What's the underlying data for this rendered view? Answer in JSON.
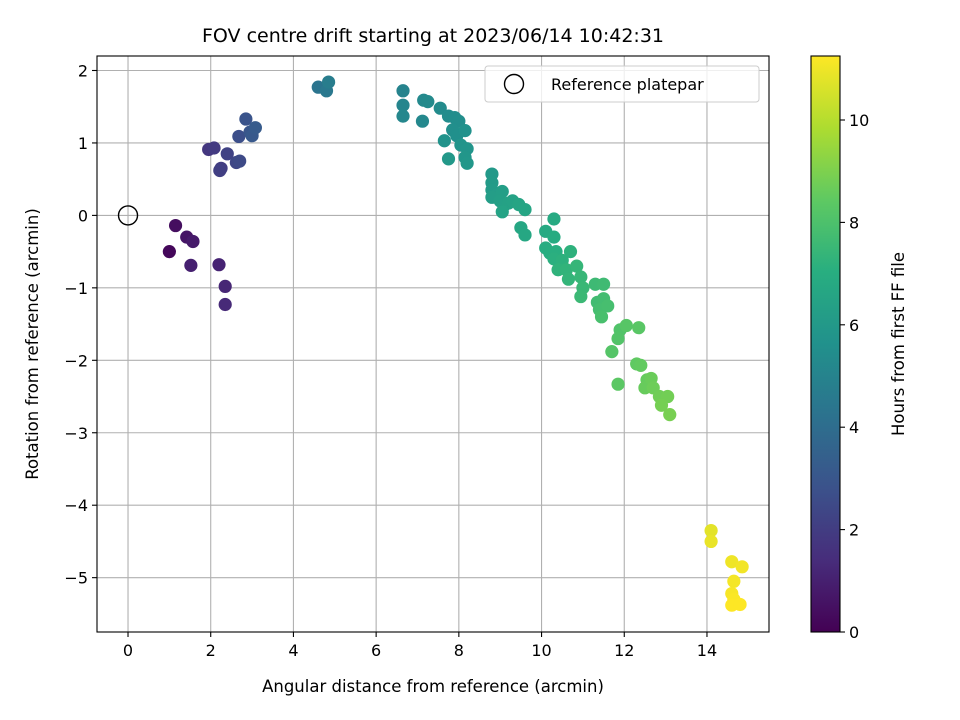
{
  "chart_data": {
    "type": "scatter",
    "title": "FOV centre drift starting at 2023/06/14 10:42:31",
    "xlabel": "Angular distance from reference (arcmin)",
    "ylabel": "Rotation from reference (arcmin)",
    "xlim": [
      -0.75,
      15.5
    ],
    "ylim": [
      -5.75,
      2.2
    ],
    "xticks": [
      0,
      2,
      4,
      6,
      8,
      10,
      12,
      14
    ],
    "yticks": [
      2,
      1,
      0,
      -1,
      -2,
      -3,
      -4,
      -5
    ],
    "xtick_labels": [
      "0",
      "2",
      "4",
      "6",
      "8",
      "10",
      "12",
      "14"
    ],
    "ytick_labels": [
      "2",
      "1",
      "0",
      "−1",
      "−2",
      "−3",
      "−4",
      "−5"
    ],
    "grid": true,
    "legend": {
      "location": "top-right",
      "entries": [
        {
          "label": "Reference platepar",
          "marker": "open-circle"
        }
      ]
    },
    "reference_point": {
      "x": 0,
      "y": 0
    },
    "colorbar": {
      "label": "Hours from first FF file",
      "colormap": "viridis",
      "range": [
        0,
        11.25
      ],
      "ticks": [
        0,
        2,
        4,
        6,
        8,
        10
      ],
      "tick_labels": [
        "0",
        "2",
        "4",
        "6",
        "8",
        "10"
      ]
    },
    "points": [
      {
        "x": 1.0,
        "y": -0.5,
        "t": 0.2
      },
      {
        "x": 1.15,
        "y": -0.14,
        "t": 0.4
      },
      {
        "x": 1.42,
        "y": -0.3,
        "t": 0.6
      },
      {
        "x": 1.57,
        "y": -0.36,
        "t": 0.8
      },
      {
        "x": 1.52,
        "y": -0.69,
        "t": 1.0
      },
      {
        "x": 2.2,
        "y": -0.68,
        "t": 1.1
      },
      {
        "x": 2.35,
        "y": -0.98,
        "t": 1.2
      },
      {
        "x": 2.35,
        "y": -1.23,
        "t": 1.3
      },
      {
        "x": 1.95,
        "y": 0.91,
        "t": 1.8
      },
      {
        "x": 2.08,
        "y": 0.93,
        "t": 1.9
      },
      {
        "x": 2.25,
        "y": 0.65,
        "t": 2.0
      },
      {
        "x": 2.22,
        "y": 0.62,
        "t": 2.1
      },
      {
        "x": 2.4,
        "y": 0.85,
        "t": 2.2
      },
      {
        "x": 2.62,
        "y": 0.73,
        "t": 2.4
      },
      {
        "x": 2.7,
        "y": 0.75,
        "t": 2.5
      },
      {
        "x": 2.68,
        "y": 1.09,
        "t": 2.7
      },
      {
        "x": 2.85,
        "y": 1.33,
        "t": 2.9
      },
      {
        "x": 2.95,
        "y": 1.15,
        "t": 3.0
      },
      {
        "x": 3.0,
        "y": 1.1,
        "t": 3.1
      },
      {
        "x": 3.08,
        "y": 1.21,
        "t": 3.2
      },
      {
        "x": 4.6,
        "y": 1.77,
        "t": 4.3
      },
      {
        "x": 4.8,
        "y": 1.72,
        "t": 4.5
      },
      {
        "x": 4.85,
        "y": 1.84,
        "t": 4.7
      },
      {
        "x": 6.65,
        "y": 1.72,
        "t": 5.0
      },
      {
        "x": 6.65,
        "y": 1.52,
        "t": 5.1
      },
      {
        "x": 6.65,
        "y": 1.37,
        "t": 5.15
      },
      {
        "x": 7.12,
        "y": 1.3,
        "t": 5.2
      },
      {
        "x": 7.15,
        "y": 1.59,
        "t": 5.25
      },
      {
        "x": 7.25,
        "y": 1.57,
        "t": 5.3
      },
      {
        "x": 7.55,
        "y": 1.48,
        "t": 5.35
      },
      {
        "x": 7.75,
        "y": 1.37,
        "t": 5.4
      },
      {
        "x": 7.9,
        "y": 1.35,
        "t": 5.45
      },
      {
        "x": 8.0,
        "y": 1.3,
        "t": 5.5
      },
      {
        "x": 7.85,
        "y": 1.18,
        "t": 5.55
      },
      {
        "x": 7.95,
        "y": 1.1,
        "t": 5.6
      },
      {
        "x": 8.15,
        "y": 1.17,
        "t": 5.65
      },
      {
        "x": 7.65,
        "y": 1.03,
        "t": 5.7
      },
      {
        "x": 8.05,
        "y": 0.97,
        "t": 5.75
      },
      {
        "x": 8.2,
        "y": 0.92,
        "t": 5.8
      },
      {
        "x": 8.15,
        "y": 0.8,
        "t": 5.85
      },
      {
        "x": 8.2,
        "y": 0.72,
        "t": 5.9
      },
      {
        "x": 7.75,
        "y": 0.78,
        "t": 5.95
      },
      {
        "x": 8.8,
        "y": 0.57,
        "t": 6.0
      },
      {
        "x": 8.8,
        "y": 0.45,
        "t": 6.05
      },
      {
        "x": 8.8,
        "y": 0.35,
        "t": 6.1
      },
      {
        "x": 8.9,
        "y": 0.28,
        "t": 6.15
      },
      {
        "x": 8.8,
        "y": 0.25,
        "t": 6.2
      },
      {
        "x": 9.05,
        "y": 0.33,
        "t": 6.25
      },
      {
        "x": 9.0,
        "y": 0.2,
        "t": 6.3
      },
      {
        "x": 9.1,
        "y": 0.14,
        "t": 6.35
      },
      {
        "x": 9.2,
        "y": 0.17,
        "t": 6.4
      },
      {
        "x": 9.3,
        "y": 0.2,
        "t": 6.45
      },
      {
        "x": 9.05,
        "y": 0.05,
        "t": 6.5
      },
      {
        "x": 9.45,
        "y": 0.15,
        "t": 6.55
      },
      {
        "x": 9.6,
        "y": 0.08,
        "t": 6.6
      },
      {
        "x": 9.5,
        "y": -0.17,
        "t": 6.65
      },
      {
        "x": 9.6,
        "y": -0.27,
        "t": 6.7
      },
      {
        "x": 10.1,
        "y": -0.22,
        "t": 6.8
      },
      {
        "x": 10.3,
        "y": -0.05,
        "t": 6.85
      },
      {
        "x": 10.3,
        "y": -0.3,
        "t": 6.9
      },
      {
        "x": 10.1,
        "y": -0.45,
        "t": 6.95
      },
      {
        "x": 10.2,
        "y": -0.52,
        "t": 7.0
      },
      {
        "x": 10.35,
        "y": -0.5,
        "t": 7.05
      },
      {
        "x": 10.3,
        "y": -0.6,
        "t": 7.1
      },
      {
        "x": 10.5,
        "y": -0.62,
        "t": 7.15
      },
      {
        "x": 10.7,
        "y": -0.5,
        "t": 7.2
      },
      {
        "x": 10.4,
        "y": -0.75,
        "t": 7.25
      },
      {
        "x": 10.6,
        "y": -0.75,
        "t": 7.3
      },
      {
        "x": 10.65,
        "y": -0.88,
        "t": 7.35
      },
      {
        "x": 10.85,
        "y": -0.7,
        "t": 7.4
      },
      {
        "x": 10.95,
        "y": -0.85,
        "t": 7.45
      },
      {
        "x": 11.0,
        "y": -1.0,
        "t": 7.5
      },
      {
        "x": 10.95,
        "y": -1.12,
        "t": 7.55
      },
      {
        "x": 11.3,
        "y": -0.95,
        "t": 7.6
      },
      {
        "x": 11.5,
        "y": -0.95,
        "t": 7.65
      },
      {
        "x": 11.35,
        "y": -1.2,
        "t": 7.7
      },
      {
        "x": 11.5,
        "y": -1.15,
        "t": 7.75
      },
      {
        "x": 11.4,
        "y": -1.3,
        "t": 7.8
      },
      {
        "x": 11.6,
        "y": -1.25,
        "t": 7.85
      },
      {
        "x": 11.45,
        "y": -1.4,
        "t": 7.9
      },
      {
        "x": 11.9,
        "y": -1.58,
        "t": 8.1
      },
      {
        "x": 11.85,
        "y": -1.7,
        "t": 8.15
      },
      {
        "x": 11.7,
        "y": -1.88,
        "t": 8.2
      },
      {
        "x": 12.05,
        "y": -1.52,
        "t": 8.25
      },
      {
        "x": 12.35,
        "y": -1.55,
        "t": 8.3
      },
      {
        "x": 11.85,
        "y": -2.33,
        "t": 8.35
      },
      {
        "x": 12.3,
        "y": -2.05,
        "t": 8.45
      },
      {
        "x": 12.4,
        "y": -2.07,
        "t": 8.5
      },
      {
        "x": 12.55,
        "y": -2.27,
        "t": 8.55
      },
      {
        "x": 12.5,
        "y": -2.38,
        "t": 8.6
      },
      {
        "x": 12.65,
        "y": -2.25,
        "t": 8.65
      },
      {
        "x": 12.7,
        "y": -2.38,
        "t": 8.7
      },
      {
        "x": 12.85,
        "y": -2.5,
        "t": 8.75
      },
      {
        "x": 13.05,
        "y": -2.5,
        "t": 8.8
      },
      {
        "x": 12.9,
        "y": -2.62,
        "t": 8.85
      },
      {
        "x": 13.1,
        "y": -2.75,
        "t": 8.9
      },
      {
        "x": 14.1,
        "y": -4.35,
        "t": 10.8
      },
      {
        "x": 14.1,
        "y": -4.5,
        "t": 10.9
      },
      {
        "x": 14.6,
        "y": -4.78,
        "t": 11.0
      },
      {
        "x": 14.85,
        "y": -4.85,
        "t": 11.05
      },
      {
        "x": 14.65,
        "y": -5.05,
        "t": 11.1
      },
      {
        "x": 14.6,
        "y": -5.22,
        "t": 11.15
      },
      {
        "x": 14.65,
        "y": -5.3,
        "t": 11.2
      },
      {
        "x": 14.6,
        "y": -5.38,
        "t": 11.25
      },
      {
        "x": 14.8,
        "y": -5.37,
        "t": 11.25
      }
    ]
  }
}
